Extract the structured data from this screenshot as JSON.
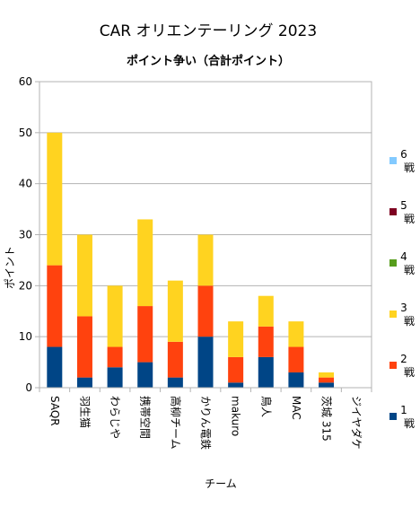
{
  "chart_data": {
    "type": "bar",
    "stacked": true,
    "title": "CAR オリエンテーリング 2023",
    "subtitle": "ポイント争い（合計ポイント）",
    "xlabel": "チーム",
    "ylabel": "ポイント",
    "ylim": [
      0,
      60
    ],
    "yticks": [
      0,
      10,
      20,
      30,
      40,
      50,
      60
    ],
    "grid": true,
    "legend_position": "right",
    "categories": [
      "SAQR",
      "羽生猫",
      "わらじや",
      "携帯空間",
      "高柳チーム",
      "かりん電鉄",
      "makuro",
      "鳥人",
      "MAC",
      "茨城 315",
      "ジイヤダケ"
    ],
    "series": [
      {
        "name": "1戦",
        "color": "#004586",
        "values": [
          8,
          2,
          4,
          5,
          2,
          10,
          1,
          6,
          3,
          1,
          0
        ]
      },
      {
        "name": "2戦",
        "color": "#ff420e",
        "values": [
          16,
          12,
          4,
          11,
          7,
          10,
          5,
          6,
          5,
          1,
          0
        ]
      },
      {
        "name": "3戦",
        "color": "#ffd320",
        "values": [
          26,
          16,
          12,
          17,
          12,
          10,
          7,
          6,
          5,
          1,
          0
        ]
      },
      {
        "name": "4戦",
        "color": "#579d1c",
        "values": [
          0,
          0,
          0,
          0,
          0,
          0,
          0,
          0,
          0,
          0,
          0
        ]
      },
      {
        "name": "5戦",
        "color": "#7e0021",
        "values": [
          0,
          0,
          0,
          0,
          0,
          0,
          0,
          0,
          0,
          0,
          0
        ]
      },
      {
        "name": "6戦",
        "color": "#83caff",
        "values": [
          0,
          0,
          0,
          0,
          0,
          0,
          0,
          0,
          0,
          0,
          0
        ]
      }
    ]
  }
}
